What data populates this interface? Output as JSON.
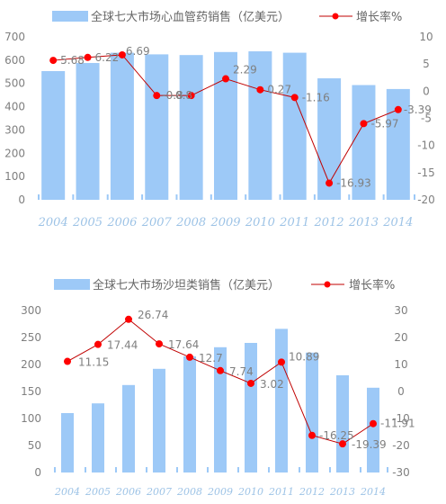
{
  "colors": {
    "bar": "#9dc9f7",
    "line": "#c00000",
    "marker": "#ff0000",
    "axis_label": "#9dc3e6"
  },
  "chart_data": [
    {
      "type": "bar",
      "legend": {
        "bar_label": "全球七大市场心血管药销售（亿美元）",
        "line_label": "增长率%",
        "position": "top"
      },
      "categories": [
        "2004",
        "2005",
        "2006",
        "2007",
        "2008",
        "2009",
        "2010",
        "2011",
        "2012",
        "2013",
        "2014"
      ],
      "series": [
        {
          "name": "全球七大市场心血管药销售（亿美元）",
          "type": "bar",
          "axis": "left",
          "values": [
            553,
            588,
            632,
            625,
            622,
            635,
            638,
            632,
            522,
            493,
            476
          ]
        },
        {
          "name": "增长率%",
          "type": "line",
          "axis": "right",
          "values": [
            5.68,
            6.22,
            6.69,
            -0.8,
            -0.8,
            2.29,
            0.27,
            -1.16,
            -16.93,
            -5.97,
            -3.39
          ],
          "labels": [
            "5.68",
            "6.22",
            "6.69",
            "-0.8",
            "-0.8",
            "2.29",
            "0.27",
            "-1.16",
            "-16.93",
            "-5.97",
            "-3.39"
          ]
        }
      ],
      "left_ticks": [
        "0",
        "100",
        "200",
        "300",
        "400",
        "500",
        "600",
        "700"
      ],
      "right_ticks": [
        "-20",
        "-15",
        "-10",
        "-5",
        "0",
        "5",
        "10"
      ],
      "ylim_left": [
        0,
        700
      ],
      "ylim_right": [
        -20,
        10
      ],
      "grid": false
    },
    {
      "type": "bar",
      "legend": {
        "bar_label": "全球七大市场沙坦类销售（亿美元）",
        "line_label": "增长率%",
        "position": "top"
      },
      "categories": [
        "2004",
        "2005",
        "2006",
        "2007",
        "2008",
        "2009",
        "2010",
        "2011",
        "2012",
        "2013",
        "2014"
      ],
      "series": [
        {
          "name": "全球七大市场沙坦类销售（亿美元）",
          "type": "bar",
          "axis": "left",
          "values": [
            110,
            128,
            162,
            192,
            215,
            232,
            240,
            266,
            222,
            180,
            157
          ]
        },
        {
          "name": "增长率%",
          "type": "line",
          "axis": "right",
          "values": [
            11.15,
            17.44,
            26.74,
            17.64,
            12.7,
            7.74,
            3.02,
            10.89,
            -16.25,
            -19.39,
            -11.91
          ],
          "labels": [
            "11.15",
            "17.44",
            "26.74",
            "17.64",
            "12.7",
            "7.74",
            "3.02",
            "10.89",
            "-16.25",
            "-19.39",
            "-11.91"
          ]
        }
      ],
      "left_ticks": [
        "0",
        "50",
        "100",
        "150",
        "200",
        "250",
        "300"
      ],
      "right_ticks": [
        "-30",
        "-20",
        "-10",
        "0",
        "10",
        "20",
        "30"
      ],
      "ylim_left": [
        0,
        300
      ],
      "ylim_right": [
        -30,
        30
      ],
      "grid": false
    }
  ]
}
